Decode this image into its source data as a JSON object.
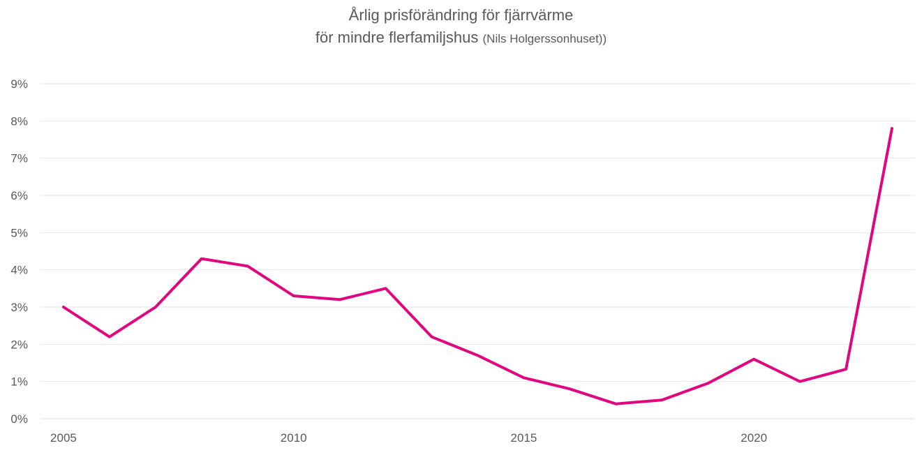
{
  "chart_data": {
    "type": "line",
    "title": "Årlig prisförändring för fjärrvärme",
    "subtitle": "för mindre flerfamiljshus",
    "subtitle_note": "(Nils Holgerssonhuset))",
    "xlabel": "",
    "ylabel": "",
    "x": [
      2005,
      2006,
      2007,
      2008,
      2009,
      2010,
      2011,
      2012,
      2013,
      2014,
      2015,
      2016,
      2017,
      2018,
      2019,
      2020,
      2021,
      2022,
      2023
    ],
    "series": [
      {
        "name": "",
        "color": "#e0067f",
        "values": [
          3.0,
          2.2,
          3.0,
          4.3,
          4.1,
          3.3,
          3.2,
          3.5,
          2.2,
          1.7,
          1.1,
          0.8,
          0.4,
          0.5,
          0.95,
          1.6,
          1.0,
          1.33,
          7.8
        ]
      }
    ],
    "x_ticks": [
      "2005",
      "2010",
      "2015",
      "2020"
    ],
    "y_ticks": [
      "0%",
      "1%",
      "2%",
      "3%",
      "4%",
      "5%",
      "6%",
      "7%",
      "8%",
      "9%"
    ],
    "xlim": [
      2004.5,
      2023.5
    ],
    "ylim": [
      0,
      9
    ],
    "grid": true,
    "legend": "none"
  }
}
